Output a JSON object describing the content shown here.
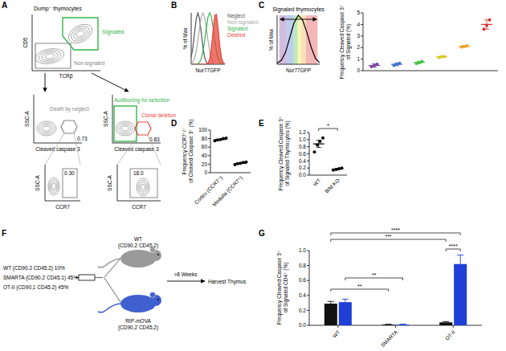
{
  "chart_data": [
    {
      "type": "line",
      "y_label": "% of Max",
      "x_label": "Nur77GFP",
      "x": [
        0,
        5,
        10,
        15,
        20,
        25,
        30,
        35,
        40,
        45,
        50,
        55,
        60,
        65,
        70,
        75,
        80,
        85,
        90,
        95,
        100
      ],
      "xlim": [
        0,
        100
      ],
      "ylim": [
        0,
        100
      ],
      "tick_labels": false,
      "legend": "right",
      "series": [
        {
          "name": "Neglect",
          "color": "#555555",
          "values": [
            13,
            32,
            61,
            88,
            100,
            88,
            61,
            32,
            13,
            4,
            1,
            0,
            0,
            0,
            0,
            0,
            0,
            0,
            0,
            0,
            0
          ]
        },
        {
          "name": "Non-signaled",
          "color": "#aaaaaa",
          "values": [
            1,
            4,
            11,
            25,
            46,
            71,
            92,
            100,
            92,
            71,
            46,
            25,
            11,
            4,
            1,
            0,
            0,
            0,
            0,
            0,
            0
          ]
        },
        {
          "name": "Signaled",
          "color": "#33b54a",
          "values": [
            0,
            0,
            0,
            0,
            1,
            4,
            11,
            25,
            46,
            71,
            92,
            100,
            92,
            71,
            46,
            25,
            11,
            4,
            1,
            0,
            0
          ]
        },
        {
          "name": "Deleted",
          "color": "#e8453c",
          "type": "area",
          "values": [
            0,
            0,
            0,
            0,
            0,
            0,
            0,
            0,
            0,
            0,
            2,
            10,
            32,
            66,
            95,
            97,
            69,
            35,
            12,
            3,
            1
          ]
        }
      ]
    },
    {
      "type": "line",
      "title": "Signaled thymocytes",
      "y_label": "% of Max",
      "x_label": "Nur77GFP",
      "x": [
        0,
        10,
        20,
        30,
        40,
        50,
        60,
        70,
        80,
        90,
        100
      ],
      "xlim": [
        0,
        100
      ],
      "ylim": [
        0,
        100
      ],
      "tick_labels": false,
      "series": [
        {
          "color": "#000000",
          "values": [
            2,
            8,
            25,
            55,
            85,
            100,
            90,
            65,
            35,
            12,
            3
          ]
        }
      ],
      "bins": [
        5,
        22,
        38,
        48,
        58,
        68,
        95
      ],
      "colors": [
        "#7b3fa0",
        "#3f6fd0",
        "#3fbf3f",
        "#e8e030",
        "#f0a030",
        "#e03030"
      ]
    },
    {
      "type": "scatter",
      "y_label": [
        "Frequency Cleaved Caspase 3⁺",
        "of Signaled (%)"
      ],
      "categories": [
        null,
        null,
        null,
        null,
        null,
        null
      ],
      "values": [
        0.45,
        0.55,
        0.72,
        1.2,
        2.1,
        4.0
      ],
      "errors": [
        0.15,
        0.12,
        0.1,
        0.05,
        0.08,
        0.4
      ],
      "points": [
        [
          0.35,
          0.45,
          0.55
        ],
        [
          0.45,
          0.55,
          0.65
        ],
        [
          0.62,
          0.72,
          0.8
        ],
        [
          1.15,
          1.2,
          1.22
        ],
        [
          2.05,
          2.1,
          2.15
        ],
        [
          3.6,
          3.9,
          4.4
        ]
      ],
      "colors": [
        "#7b3fa0",
        "#3f6fd0",
        "#3fbf3f",
        "#d8c820",
        "#f0a030",
        "#e03030"
      ],
      "marker": "circle",
      "ylim": [
        0,
        5
      ],
      "yticks": [
        0,
        1,
        2,
        3,
        4,
        5
      ],
      "tick_labels": "y"
    },
    {
      "type": "scatter",
      "y_label": [
        "Frequency CCR7⁺/⁻",
        "of Cleaved Caspase 3⁺ (%)"
      ],
      "categories": [
        "Cortex (CCR7⁻)",
        "Medulla (CCR7⁺)"
      ],
      "values": [
        78,
        22
      ],
      "points": [
        [
          75,
          77,
          78,
          80,
          81
        ],
        [
          19,
          21,
          22,
          24,
          25
        ]
      ],
      "color": "#000000",
      "marker": "circle",
      "ylim": [
        0,
        100
      ],
      "yticks": [
        0,
        20,
        40,
        60,
        80,
        100
      ]
    },
    {
      "type": "scatter",
      "y_label": [
        "Frequency Cleaved Caspase 3⁺",
        "of Signaled Thymocytes (%)"
      ],
      "categories": [
        "WT",
        "BIM KO"
      ],
      "values": [
        0.88,
        0.17
      ],
      "errors": [
        0.1,
        0.02
      ],
      "points": [
        [
          0.65,
          0.85,
          0.95,
          1.05
        ],
        [
          0.14,
          0.16,
          0.18,
          0.2
        ]
      ],
      "color": "#000000",
      "marker": "circle",
      "ylim": [
        0,
        1.2
      ],
      "yticks": [
        {
          "value": 0,
          "label": "0.0"
        },
        0.2,
        0.4,
        0.6,
        0.8,
        {
          "value": 1,
          "label": "1.0"
        },
        1.2
      ],
      "annotations": [
        "*"
      ]
    },
    {
      "type": "bar",
      "y_label": [
        "Frequency Cleaved Caspase 3⁺",
        "of Signaled CD4⁺ (%)"
      ],
      "categories": [
        "WT",
        "SMARTA",
        "OT-II"
      ],
      "series": [
        {
          "color": "#111111",
          "values": [
            0.29,
            0.01,
            0.04
          ],
          "errors": [
            0.03,
            0.005,
            0.01
          ]
        },
        {
          "color": "#1f3fd6",
          "values": [
            0.31,
            0.01,
            0.82
          ],
          "errors": [
            0.04,
            0.005,
            0.12
          ]
        }
      ],
      "ylim": [
        0,
        1
      ],
      "yticks": [
        {
          "value": 0,
          "label": "0.0"
        },
        0.2,
        0.4,
        0.6,
        0.8,
        {
          "value": 1,
          "label": "1.0"
        }
      ],
      "annotations": [
        "****",
        "***",
        "**",
        "**",
        "****"
      ]
    }
  ],
  "panel_labels": [
    "A",
    "B",
    "C",
    "D",
    "E",
    "F",
    "G"
  ],
  "flow": {
    "title": "Dump⁻ thymocytes",
    "top": {
      "y_label": "CD5",
      "x_label": "TCRβ",
      "gates": [
        {
          "label": "Signaled",
          "color": "#33b54a"
        },
        {
          "label": "Non-signaled",
          "color": "#888888"
        }
      ]
    },
    "middle": [
      {
        "y_label": "SSC-A",
        "x_label": "Cleaved caspase 3",
        "gates": [
          {
            "label": "Death by neglect",
            "color": "#888888",
            "value": "0.73"
          }
        ]
      },
      {
        "y_label": "SSC-A",
        "x_label": "Cleaved caspase 3",
        "gates": [
          {
            "label": "Auditioning for selection",
            "color": "#33b54a"
          },
          {
            "label": "Clonal deletion",
            "color": "#e8453c",
            "value": "0.83"
          }
        ]
      }
    ],
    "bottom": [
      {
        "y_label": "SSC-A",
        "x_label": "CCR7",
        "value": "0.30"
      },
      {
        "y_label": "SSC-A",
        "x_label": "CCR7",
        "value": "18.0"
      }
    ]
  },
  "diagram": {
    "donors": [
      "WT (CD90.2 CD45.2) 10%",
      "SMARTA (CD90.2 CD45.1) 45%",
      "OT-II (CD90,1 CD45.2) 45%"
    ],
    "hosts": [
      {
        "name": "WT",
        "detail": "(CD90.2 CD45.2)",
        "color": "#9a9a9a"
      },
      {
        "name": "RIP-mOVA",
        "detail": "(CD90,2 CD45,2)",
        "color": "#4060d0"
      }
    ],
    "time": ">8 Weeks",
    "endpoint": "Harvest Thymus"
  }
}
